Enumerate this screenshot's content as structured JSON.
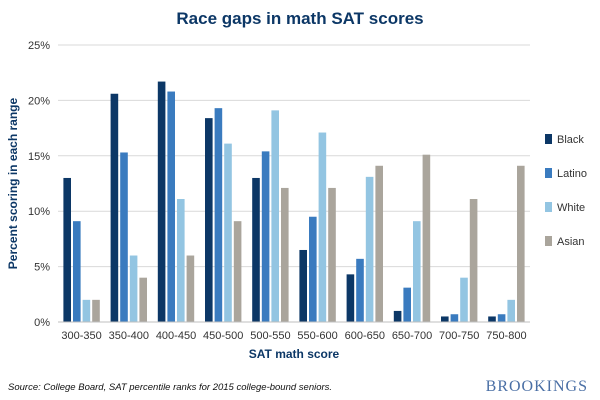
{
  "chart_data": {
    "type": "bar",
    "title": "Race gaps in math SAT scores",
    "xlabel": "SAT math score",
    "ylabel": "Percent scoring in each range",
    "ylim": [
      0,
      25
    ],
    "yticks": [
      "0%",
      "5%",
      "10%",
      "15%",
      "20%",
      "25%"
    ],
    "ytick_values": [
      0,
      5,
      10,
      15,
      20,
      25
    ],
    "grid": true,
    "legend_position": "right",
    "categories": [
      "300-350",
      "350-400",
      "400-450",
      "450-500",
      "500-550",
      "550-600",
      "600-650",
      "650-700",
      "700-750",
      "750-800"
    ],
    "series": [
      {
        "name": "Black",
        "color": "#0c3766",
        "values": [
          13,
          20.6,
          21.7,
          18.4,
          13,
          6.5,
          4.3,
          1,
          0.5,
          0.5
        ]
      },
      {
        "name": "Latino",
        "color": "#3a7bbf",
        "values": [
          9.1,
          15.3,
          20.8,
          19.3,
          15.4,
          9.5,
          5.7,
          3.1,
          0.7,
          0.7
        ]
      },
      {
        "name": "White",
        "color": "#93c5e2",
        "values": [
          2,
          6,
          11.1,
          16.1,
          19.1,
          17.1,
          13.1,
          9.1,
          4,
          2
        ]
      },
      {
        "name": "Asian",
        "color": "#aaa59c",
        "values": [
          2,
          4,
          6,
          9.1,
          12.1,
          12.1,
          14.1,
          15.1,
          11.1,
          14.1
        ]
      }
    ]
  },
  "source_note": "Source: College Board, SAT percentile ranks for 2015 college-bound seniors.",
  "brand": "BROOKINGS",
  "colors": {
    "title": "#0c3766",
    "axis_label": "#0c3766",
    "grid": "#d9d9d9",
    "brand": "#4a6fa5"
  }
}
